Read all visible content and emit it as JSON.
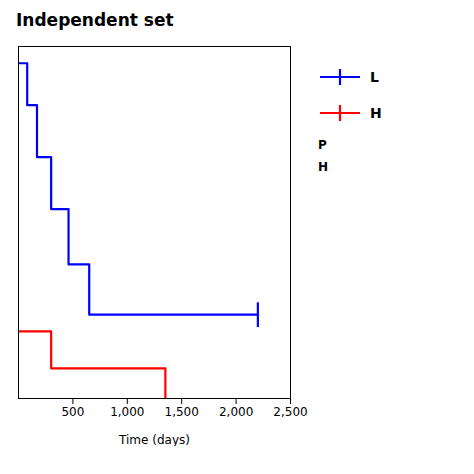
{
  "chart_data": {
    "type": "step",
    "title": "Independent set",
    "xlabel": "Time (days)",
    "xlim": [
      0,
      2500
    ],
    "ylim": [
      0,
      1.05
    ],
    "xticks": [
      500,
      1000,
      1500,
      2000,
      2500
    ],
    "tick_labels": "x",
    "grid": false,
    "legend": "right",
    "series": [
      {
        "name": "L",
        "color": "#0000FF",
        "x": [
          0,
          80,
          80,
          170,
          170,
          300,
          300,
          460,
          460,
          650,
          650,
          2200
        ],
        "values": [
          1.0,
          1.0,
          0.875,
          0.875,
          0.72,
          0.72,
          0.565,
          0.565,
          0.4,
          0.4,
          0.25,
          0.25
        ],
        "censor_x": [
          2200
        ],
        "censor_y": [
          0.25
        ]
      },
      {
        "name": "H",
        "color": "#FF0000",
        "x": [
          0,
          300,
          300,
          1350,
          1350
        ],
        "values": [
          0.2,
          0.2,
          0.09,
          0.09,
          0.0
        ]
      }
    ],
    "annotations": [
      "P",
      "H"
    ]
  }
}
